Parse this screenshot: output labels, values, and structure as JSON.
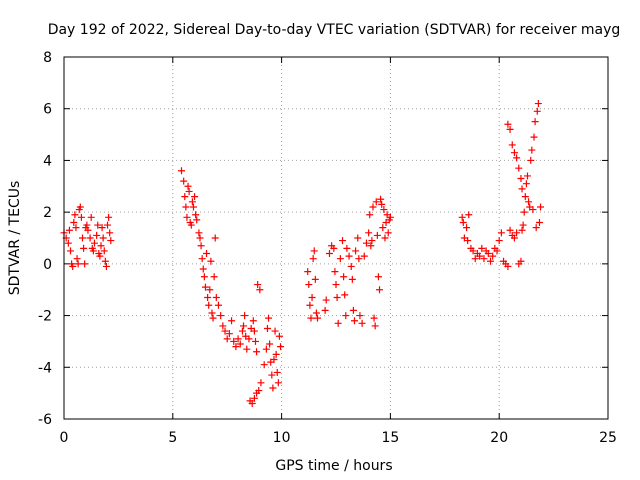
{
  "chart_data": {
    "type": "scatter",
    "title": "Day 192 of 2022, Sidereal Day-to-day VTEC variation (SDTVAR) for receiver mayg",
    "xlabel": "GPS time / hours",
    "ylabel": "SDTVAR / TECUs",
    "xlim": [
      0,
      25
    ],
    "ylim": [
      -6,
      8
    ],
    "xticks": [
      "0",
      "5",
      "10",
      "15",
      "20",
      "25"
    ],
    "yticks": [
      "-6",
      "-4",
      "-2",
      "0",
      "2",
      "4",
      "6",
      "8"
    ],
    "grid": true,
    "marker": "+",
    "color": "#ff0000",
    "series": [
      {
        "points": [
          [
            0.0,
            1.2
          ],
          [
            0.1,
            1.0
          ],
          [
            0.2,
            0.8
          ],
          [
            0.25,
            1.3
          ],
          [
            0.3,
            0.5
          ],
          [
            0.35,
            0.0
          ],
          [
            0.4,
            -0.1
          ],
          [
            0.45,
            1.6
          ],
          [
            0.5,
            1.9
          ],
          [
            0.55,
            1.4
          ],
          [
            0.6,
            0.2
          ],
          [
            0.65,
            0.0
          ],
          [
            0.7,
            2.1
          ],
          [
            0.75,
            2.2
          ],
          [
            0.8,
            1.8
          ],
          [
            0.85,
            1.0
          ],
          [
            0.9,
            0.6
          ],
          [
            0.95,
            0.0
          ],
          [
            1.0,
            1.4
          ],
          [
            1.05,
            1.5
          ],
          [
            1.1,
            1.3
          ],
          [
            1.2,
            1.0
          ],
          [
            1.25,
            1.8
          ],
          [
            1.3,
            0.6
          ],
          [
            1.35,
            0.5
          ],
          [
            1.4,
            0.8
          ],
          [
            1.5,
            1.1
          ],
          [
            1.55,
            1.5
          ],
          [
            1.6,
            0.4
          ],
          [
            1.65,
            0.3
          ],
          [
            1.7,
            0.7
          ],
          [
            1.75,
            1.4
          ],
          [
            1.8,
            1.0
          ],
          [
            1.85,
            0.5
          ],
          [
            1.9,
            0.1
          ],
          [
            1.95,
            -0.1
          ],
          [
            2.0,
            1.5
          ],
          [
            2.05,
            1.8
          ],
          [
            2.1,
            1.2
          ],
          [
            2.15,
            0.9
          ]
        ]
      },
      {
        "points": [
          [
            5.4,
            3.6
          ],
          [
            5.5,
            3.2
          ],
          [
            5.55,
            2.6
          ],
          [
            5.6,
            2.2
          ],
          [
            5.65,
            1.8
          ],
          [
            5.7,
            3.0
          ],
          [
            5.75,
            2.8
          ],
          [
            5.8,
            1.6
          ],
          [
            5.85,
            1.5
          ],
          [
            5.9,
            2.4
          ],
          [
            5.95,
            2.2
          ],
          [
            6.0,
            2.6
          ],
          [
            6.05,
            1.9
          ],
          [
            6.1,
            1.7
          ],
          [
            6.2,
            1.2
          ],
          [
            6.25,
            1.0
          ],
          [
            6.3,
            0.7
          ],
          [
            6.35,
            0.2
          ],
          [
            6.4,
            -0.2
          ],
          [
            6.45,
            -0.5
          ],
          [
            6.5,
            -0.9
          ],
          [
            6.55,
            0.4
          ],
          [
            6.6,
            -1.3
          ],
          [
            6.65,
            -1.6
          ],
          [
            6.7,
            -1.0
          ],
          [
            6.75,
            0.1
          ],
          [
            6.8,
            -1.9
          ],
          [
            6.85,
            -2.1
          ],
          [
            6.9,
            -0.5
          ],
          [
            6.95,
            1.0
          ],
          [
            7.0,
            -1.3
          ],
          [
            7.1,
            -1.6
          ],
          [
            7.2,
            -2.0
          ],
          [
            7.3,
            -2.4
          ],
          [
            7.4,
            -2.6
          ],
          [
            7.5,
            -2.9
          ],
          [
            7.6,
            -2.7
          ],
          [
            7.7,
            -2.2
          ],
          [
            7.8,
            -3.0
          ],
          [
            7.9,
            -3.2
          ],
          [
            8.0,
            -2.9
          ],
          [
            8.1,
            -3.1
          ],
          [
            8.2,
            -2.6
          ],
          [
            8.25,
            -2.4
          ],
          [
            8.3,
            -2.0
          ],
          [
            8.35,
            -2.8
          ],
          [
            8.4,
            -3.3
          ],
          [
            8.5,
            -2.9
          ],
          [
            8.6,
            -2.5
          ],
          [
            8.7,
            -2.2
          ],
          [
            8.75,
            -2.6
          ],
          [
            8.8,
            -3.0
          ],
          [
            8.85,
            -3.4
          ],
          [
            8.9,
            -0.8
          ],
          [
            9.0,
            -1.0
          ],
          [
            8.55,
            -5.3
          ],
          [
            8.65,
            -5.4
          ],
          [
            8.75,
            -5.2
          ],
          [
            8.85,
            -5.0
          ],
          [
            8.95,
            -4.9
          ],
          [
            9.05,
            -4.6
          ],
          [
            9.2,
            -3.9
          ],
          [
            9.3,
            -3.3
          ],
          [
            9.35,
            -2.5
          ],
          [
            9.4,
            -2.1
          ],
          [
            9.45,
            -3.1
          ],
          [
            9.5,
            -3.8
          ],
          [
            9.55,
            -4.3
          ],
          [
            9.6,
            -4.8
          ],
          [
            9.65,
            -3.7
          ],
          [
            9.7,
            -2.6
          ],
          [
            9.75,
            -3.5
          ],
          [
            9.8,
            -4.2
          ],
          [
            9.85,
            -4.6
          ],
          [
            9.9,
            -2.8
          ],
          [
            9.95,
            -3.2
          ]
        ]
      },
      {
        "points": [
          [
            11.2,
            -0.3
          ],
          [
            11.25,
            -0.8
          ],
          [
            11.3,
            -1.6
          ],
          [
            11.35,
            -2.1
          ],
          [
            11.4,
            -1.3
          ],
          [
            11.45,
            0.2
          ],
          [
            11.5,
            0.5
          ],
          [
            11.55,
            -0.6
          ],
          [
            11.6,
            -1.9
          ],
          [
            11.65,
            -2.1
          ],
          [
            12.0,
            -1.8
          ],
          [
            12.05,
            -1.4
          ],
          [
            12.2,
            0.4
          ],
          [
            12.3,
            0.7
          ],
          [
            12.4,
            0.6
          ],
          [
            12.45,
            -0.3
          ],
          [
            12.5,
            -0.8
          ],
          [
            12.55,
            -1.3
          ],
          [
            12.6,
            -2.3
          ],
          [
            12.7,
            0.2
          ],
          [
            12.8,
            0.9
          ],
          [
            12.85,
            -0.5
          ],
          [
            12.9,
            -1.2
          ],
          [
            12.95,
            -2.0
          ],
          [
            13.0,
            0.6
          ],
          [
            13.1,
            0.3
          ],
          [
            13.2,
            -0.1
          ],
          [
            13.25,
            -0.6
          ],
          [
            13.3,
            -1.8
          ],
          [
            13.35,
            -2.2
          ],
          [
            13.4,
            0.5
          ],
          [
            13.5,
            1.0
          ],
          [
            13.55,
            0.2
          ],
          [
            13.6,
            -2.0
          ],
          [
            13.7,
            -2.3
          ],
          [
            13.8,
            0.3
          ],
          [
            13.9,
            0.8
          ],
          [
            14.0,
            1.2
          ],
          [
            14.05,
            1.9
          ],
          [
            14.1,
            0.7
          ],
          [
            14.15,
            0.9
          ],
          [
            14.2,
            2.2
          ],
          [
            14.25,
            -2.1
          ],
          [
            14.3,
            -2.4
          ],
          [
            14.35,
            2.4
          ],
          [
            14.4,
            1.1
          ],
          [
            14.45,
            -0.5
          ],
          [
            14.5,
            -1.0
          ],
          [
            14.55,
            2.5
          ],
          [
            14.6,
            2.3
          ],
          [
            14.65,
            1.4
          ],
          [
            14.7,
            2.1
          ],
          [
            14.75,
            1.0
          ],
          [
            14.8,
            1.6
          ],
          [
            14.85,
            1.9
          ],
          [
            14.9,
            1.2
          ],
          [
            14.95,
            1.7
          ],
          [
            15.0,
            1.8
          ]
        ]
      },
      {
        "points": [
          [
            18.3,
            1.8
          ],
          [
            18.35,
            1.6
          ],
          [
            18.4,
            1.0
          ],
          [
            18.5,
            1.4
          ],
          [
            18.55,
            0.9
          ],
          [
            18.6,
            1.9
          ],
          [
            18.7,
            0.6
          ],
          [
            18.8,
            0.5
          ],
          [
            18.9,
            0.2
          ],
          [
            19.0,
            0.4
          ],
          [
            19.1,
            0.3
          ],
          [
            19.2,
            0.6
          ],
          [
            19.3,
            0.2
          ],
          [
            19.4,
            0.5
          ],
          [
            19.5,
            0.4
          ],
          [
            19.6,
            0.1
          ],
          [
            19.7,
            0.3
          ],
          [
            19.8,
            0.6
          ],
          [
            19.9,
            0.5
          ],
          [
            20.0,
            0.9
          ],
          [
            20.1,
            1.2
          ],
          [
            20.2,
            0.1
          ],
          [
            20.3,
            0.0
          ],
          [
            20.4,
            -0.1
          ],
          [
            20.5,
            1.3
          ],
          [
            20.6,
            1.1
          ],
          [
            20.7,
            1.0
          ],
          [
            20.8,
            1.2
          ],
          [
            20.9,
            0.0
          ],
          [
            21.0,
            0.1
          ],
          [
            21.05,
            1.3
          ],
          [
            21.1,
            1.5
          ],
          [
            21.15,
            2.0
          ],
          [
            21.2,
            2.6
          ],
          [
            21.25,
            3.1
          ],
          [
            21.3,
            3.4
          ],
          [
            21.35,
            2.4
          ],
          [
            21.4,
            2.2
          ],
          [
            21.45,
            4.0
          ],
          [
            21.5,
            4.4
          ],
          [
            21.55,
            2.1
          ],
          [
            21.6,
            4.9
          ],
          [
            21.65,
            5.5
          ],
          [
            21.7,
            1.4
          ],
          [
            21.75,
            5.9
          ],
          [
            21.8,
            6.2
          ],
          [
            21.85,
            1.6
          ],
          [
            21.9,
            2.2
          ],
          [
            20.4,
            5.4
          ],
          [
            20.5,
            5.2
          ],
          [
            20.6,
            4.6
          ],
          [
            20.7,
            4.3
          ],
          [
            20.8,
            4.1
          ],
          [
            20.9,
            3.7
          ],
          [
            21.0,
            3.3
          ],
          [
            21.05,
            2.9
          ]
        ]
      }
    ]
  }
}
